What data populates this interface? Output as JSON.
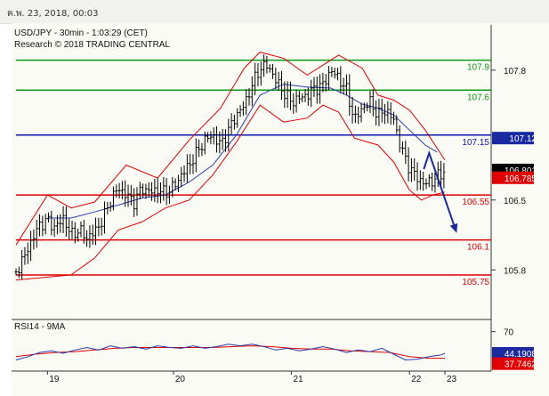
{
  "window": {
    "date_time": "ค.พ. 23, 2018, 00:03"
  },
  "chart_data": {
    "type": "candlestick",
    "title": "USD/JPY - 30min - 1:03:29 (CET)",
    "subtitle": "Research © 2018 TRADING CENTRAL",
    "colors": {
      "resistance": "#0a9a16",
      "pivot": "#0a1ab0",
      "support": "#e00000",
      "bollinger": "#e00000",
      "moving_average": "#2a3aa8",
      "price_bars": "#000000",
      "arrow": "#1a2a9a",
      "last_price_tag": "#000000",
      "current_tag": "#1a2aa0",
      "rsi_ma_tag": "#e00000"
    },
    "price_axis": {
      "ylim": [
        105.5,
        107.95
      ],
      "ticks": [
        "107.8",
        "106.5",
        "105.8"
      ]
    },
    "x_axis": {
      "ticks": [
        "19",
        "20",
        "21",
        "22",
        "23"
      ]
    },
    "levels": [
      {
        "label": "107.9",
        "value": 107.9,
        "role": "resistance"
      },
      {
        "label": "107.6",
        "value": 107.6,
        "role": "resistance"
      },
      {
        "label": "107.15",
        "value": 107.15,
        "role": "pivot"
      },
      {
        "label": "106.55",
        "value": 106.55,
        "role": "support"
      },
      {
        "label": "106.1",
        "value": 106.1,
        "role": "support"
      },
      {
        "label": "105.75",
        "value": 105.75,
        "role": "support"
      }
    ],
    "price_tags": [
      {
        "label": "107.12",
        "value": 107.12,
        "role": "current"
      },
      {
        "label": "106.801",
        "value": 106.801,
        "role": "last"
      },
      {
        "label": "106.785",
        "value": 106.785,
        "role": "ma"
      }
    ],
    "close_path": [
      [
        0,
        105.78
      ],
      [
        4,
        105.92
      ],
      [
        8,
        106.1
      ],
      [
        12,
        106.25
      ],
      [
        16,
        106.3
      ],
      [
        20,
        106.22
      ],
      [
        24,
        106.32
      ],
      [
        28,
        106.15
      ],
      [
        32,
        106.2
      ],
      [
        36,
        106.12
      ],
      [
        40,
        106.18
      ],
      [
        44,
        106.3
      ],
      [
        48,
        106.5
      ],
      [
        52,
        106.62
      ],
      [
        56,
        106.55
      ],
      [
        60,
        106.48
      ],
      [
        64,
        106.62
      ],
      [
        68,
        106.58
      ],
      [
        72,
        106.6
      ],
      [
        76,
        106.57
      ],
      [
        80,
        106.63
      ],
      [
        84,
        106.75
      ],
      [
        88,
        106.85
      ],
      [
        92,
        106.98
      ],
      [
        96,
        107.1
      ],
      [
        100,
        107.15
      ],
      [
        104,
        107.05
      ],
      [
        108,
        107.2
      ],
      [
        112,
        107.35
      ],
      [
        116,
        107.45
      ],
      [
        120,
        107.65
      ],
      [
        124,
        107.82
      ],
      [
        128,
        107.85
      ],
      [
        132,
        107.7
      ],
      [
        136,
        107.58
      ],
      [
        140,
        107.48
      ],
      [
        144,
        107.52
      ],
      [
        148,
        107.55
      ],
      [
        152,
        107.62
      ],
      [
        156,
        107.65
      ],
      [
        160,
        107.8
      ],
      [
        164,
        107.72
      ],
      [
        168,
        107.6
      ],
      [
        172,
        107.3
      ],
      [
        176,
        107.42
      ],
      [
        180,
        107.48
      ],
      [
        184,
        107.35
      ],
      [
        188,
        107.4
      ],
      [
        192,
        107.3
      ],
      [
        196,
        107.0
      ],
      [
        200,
        106.82
      ],
      [
        204,
        106.72
      ],
      [
        208,
        106.66
      ],
      [
        212,
        106.7
      ],
      [
        216,
        106.76
      ],
      [
        218,
        106.8
      ]
    ],
    "bollinger_upper": [
      [
        0,
        106.05
      ],
      [
        16,
        106.55
      ],
      [
        28,
        106.42
      ],
      [
        40,
        106.48
      ],
      [
        56,
        106.85
      ],
      [
        72,
        106.72
      ],
      [
        88,
        107.1
      ],
      [
        104,
        107.42
      ],
      [
        116,
        107.82
      ],
      [
        124,
        107.98
      ],
      [
        136,
        107.92
      ],
      [
        148,
        107.75
      ],
      [
        156,
        107.85
      ],
      [
        164,
        107.95
      ],
      [
        176,
        107.82
      ],
      [
        184,
        107.55
      ],
      [
        192,
        107.5
      ],
      [
        200,
        107.4
      ],
      [
        208,
        107.2
      ],
      [
        218,
        106.9
      ]
    ],
    "bollinger_lower": [
      [
        0,
        105.7
      ],
      [
        12,
        105.72
      ],
      [
        28,
        105.75
      ],
      [
        40,
        105.92
      ],
      [
        52,
        106.2
      ],
      [
        64,
        106.28
      ],
      [
        76,
        106.42
      ],
      [
        88,
        106.5
      ],
      [
        100,
        106.75
      ],
      [
        112,
        107.08
      ],
      [
        124,
        107.45
      ],
      [
        136,
        107.28
      ],
      [
        148,
        107.32
      ],
      [
        156,
        107.45
      ],
      [
        164,
        107.38
      ],
      [
        172,
        107.12
      ],
      [
        184,
        107.05
      ],
      [
        192,
        106.88
      ],
      [
        200,
        106.6
      ],
      [
        206,
        106.5
      ],
      [
        212,
        106.55
      ],
      [
        218,
        106.58
      ]
    ],
    "moving_average": [
      [
        16,
        106.32
      ],
      [
        28,
        106.32
      ],
      [
        40,
        106.38
      ],
      [
        52,
        106.45
      ],
      [
        64,
        106.52
      ],
      [
        76,
        106.55
      ],
      [
        88,
        106.68
      ],
      [
        100,
        106.85
      ],
      [
        112,
        107.15
      ],
      [
        124,
        107.55
      ],
      [
        136,
        107.66
      ],
      [
        148,
        107.63
      ],
      [
        160,
        107.62
      ],
      [
        168,
        107.55
      ],
      [
        176,
        107.46
      ],
      [
        184,
        107.42
      ],
      [
        192,
        107.35
      ],
      [
        200,
        107.2
      ],
      [
        208,
        107.05
      ],
      [
        214,
        106.98
      ]
    ],
    "forecast_arrow": [
      [
        210,
        106.97
      ],
      [
        224,
        106.17
      ]
    ],
    "rsi": {
      "label": "RSI14 - 9MA",
      "ylim": [
        28,
        75
      ],
      "ticks": [
        "70"
      ],
      "tags": [
        "44.1908",
        "37.7462"
      ],
      "values": [
        [
          0,
          36
        ],
        [
          6,
          40
        ],
        [
          12,
          45
        ],
        [
          18,
          47
        ],
        [
          24,
          44
        ],
        [
          30,
          48
        ],
        [
          36,
          51
        ],
        [
          42,
          48
        ],
        [
          48,
          53
        ],
        [
          54,
          50
        ],
        [
          60,
          52
        ],
        [
          66,
          49
        ],
        [
          72,
          53
        ],
        [
          78,
          51
        ],
        [
          84,
          50
        ],
        [
          90,
          53
        ],
        [
          96,
          50
        ],
        [
          102,
          52
        ],
        [
          108,
          55
        ],
        [
          114,
          53
        ],
        [
          120,
          55
        ],
        [
          126,
          52
        ],
        [
          132,
          48
        ],
        [
          138,
          50
        ],
        [
          144,
          47
        ],
        [
          150,
          49
        ],
        [
          156,
          52
        ],
        [
          162,
          49
        ],
        [
          168,
          45
        ],
        [
          174,
          48
        ],
        [
          180,
          46
        ],
        [
          186,
          50
        ],
        [
          192,
          43
        ],
        [
          198,
          36
        ],
        [
          204,
          37
        ],
        [
          210,
          40
        ],
        [
          216,
          42
        ],
        [
          218,
          44
        ]
      ],
      "ma": [
        [
          0,
          40
        ],
        [
          10,
          43
        ],
        [
          20,
          45
        ],
        [
          30,
          46
        ],
        [
          40,
          48
        ],
        [
          50,
          50
        ],
        [
          60,
          51
        ],
        [
          70,
          51
        ],
        [
          80,
          51
        ],
        [
          90,
          51
        ],
        [
          100,
          51
        ],
        [
          110,
          52
        ],
        [
          120,
          53
        ],
        [
          130,
          52
        ],
        [
          140,
          50
        ],
        [
          150,
          49
        ],
        [
          160,
          49
        ],
        [
          170,
          47
        ],
        [
          180,
          46
        ],
        [
          190,
          45
        ],
        [
          200,
          40
        ],
        [
          210,
          38
        ],
        [
          218,
          38
        ]
      ]
    }
  }
}
